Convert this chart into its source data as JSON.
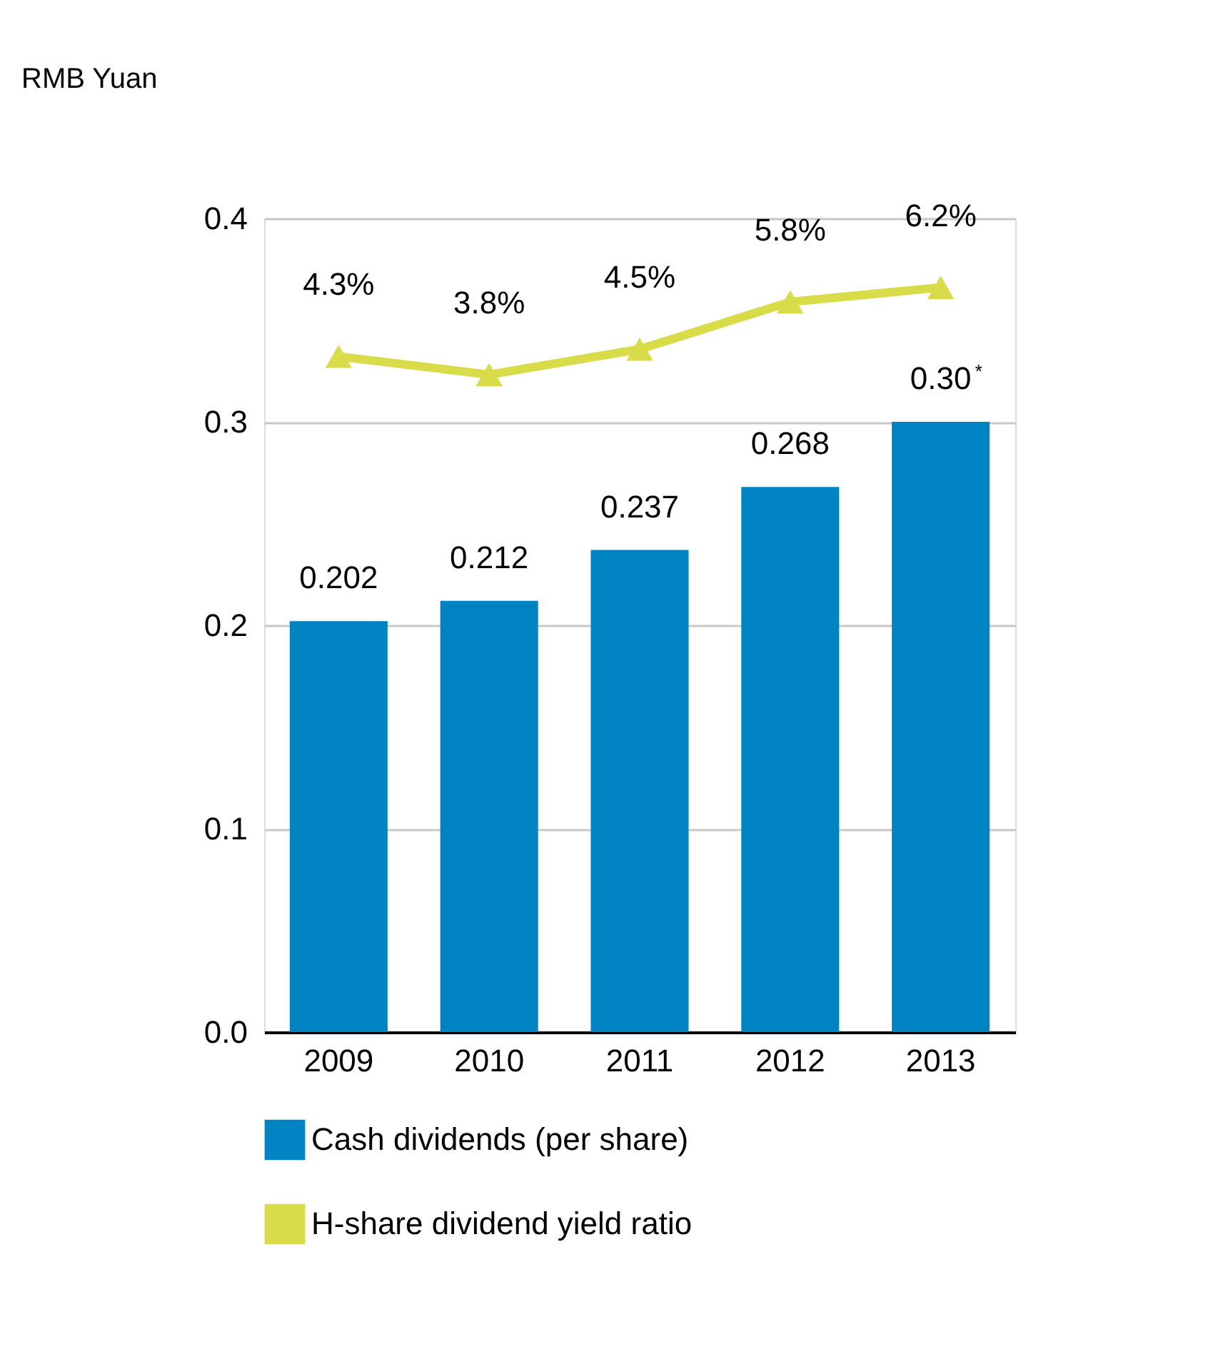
{
  "chart_data": {
    "type": "bar",
    "ylabel": "RMB Yuan",
    "categories": [
      "2009",
      "2010",
      "2011",
      "2012",
      "2013"
    ],
    "series": [
      {
        "name": "Cash dividends (per share)",
        "color": "#0083c3",
        "values": [
          0.202,
          0.212,
          0.237,
          0.268,
          0.3
        ],
        "value_labels": [
          "0.202",
          "0.212",
          "0.237",
          "0.268",
          "0.30$^{*}$"
        ]
      },
      {
        "name": "H-share dividend yield ratio",
        "type": "line",
        "axis": "y2",
        "color": "#d8dc48",
        "marker": "triangle",
        "values": [
          4.3,
          3.8,
          4.5,
          5.8,
          6.2
        ],
        "value_labels": [
          "4.3%",
          "3.8%",
          "4.5%",
          "5.8%",
          "6.2%"
        ]
      }
    ],
    "ylim": [
      0,
      0.4
    ],
    "yticks": [
      {
        "value": 0,
        "label": "0.0"
      },
      0.1,
      0.2,
      0.3,
      0.4
    ],
    "y2lim": [
      -14.3,
      8.1
    ],
    "grid": "y",
    "legend": "bottom"
  }
}
